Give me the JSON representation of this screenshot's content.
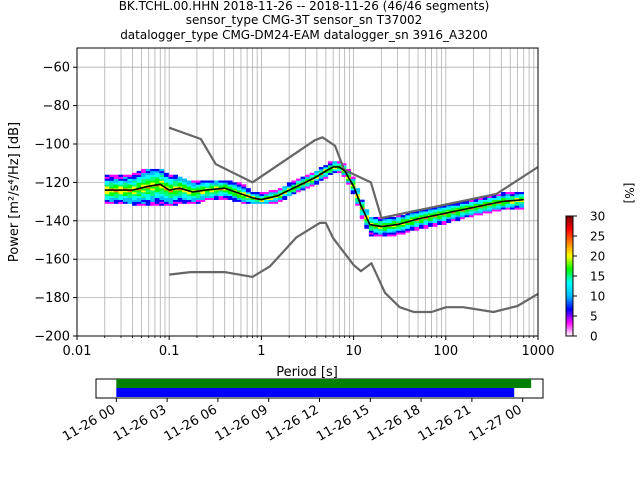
{
  "title_lines": [
    "BK.TCHL.00.HHN   2018-11-26 -- 2018-11-26  (46/46 segments)",
    "sensor_type CMG-3T sensor_sn T37002",
    "datalogger_type CMG-DM24-EAM datalogger_sn 3916_A3200"
  ],
  "colorbar": {
    "label": "[%]",
    "ticks": [
      0,
      5,
      10,
      15,
      20,
      25,
      30
    ],
    "range": [
      0,
      30
    ],
    "colors": [
      "#ffffff",
      "#ff00ff",
      "#0000ff",
      "#00ffff",
      "#00ff00",
      "#ffff00",
      "#ff7f00",
      "#ff0000",
      "#7f0000"
    ]
  },
  "chart_data": {
    "type": "line",
    "xlabel": "Period [s]",
    "ylabel": "Power [m²/s⁴/Hz] [dB]",
    "x_scale": "log",
    "xlim": [
      0.01,
      1000
    ],
    "ylim": [
      -200,
      -50
    ],
    "x_ticks": [
      0.01,
      0.1,
      1,
      10,
      100,
      1000
    ],
    "x_tick_labels": [
      "0.01",
      "0.1",
      "1",
      "10",
      "100",
      "1000"
    ],
    "y_ticks": [
      -200,
      -180,
      -160,
      -140,
      -120,
      -100,
      -80,
      -60
    ],
    "grid": true,
    "series": [
      {
        "role": "noise-model-high",
        "color": "#666666",
        "x": [
          0.1,
          0.22,
          0.32,
          0.8,
          3.8,
          4.6,
          6.3,
          7.9,
          15.4,
          20,
          354.8,
          1000
        ],
        "y": [
          -91.5,
          -97.4,
          -110.5,
          -120,
          -98,
          -96.5,
          -101,
          -113.5,
          -120,
          -138.5,
          -126,
          -112
        ]
      },
      {
        "role": "noise-model-low",
        "color": "#666666",
        "x": [
          0.1,
          0.17,
          0.4,
          0.8,
          1.24,
          2.4,
          4.3,
          5,
          6,
          10,
          12,
          15.6,
          21.9,
          31.6,
          45,
          70,
          101,
          154,
          328,
          600,
          1000
        ],
        "y": [
          -168,
          -166.7,
          -166.7,
          -169.2,
          -163.7,
          -148.6,
          -141.1,
          -141.1,
          -149,
          -163,
          -166.2,
          -162.1,
          -177.5,
          -185,
          -187.5,
          -187.5,
          -185,
          -185,
          -187.5,
          -184.4,
          -178
        ]
      },
      {
        "role": "mean",
        "color": "#000000",
        "x": [
          0.02,
          0.04,
          0.06,
          0.08,
          0.1,
          0.13,
          0.18,
          0.25,
          0.4,
          0.6,
          0.8,
          1,
          1.5,
          2,
          3,
          4,
          5,
          6,
          7,
          8,
          10,
          12,
          15,
          20,
          30,
          50,
          100,
          200,
          400,
          700
        ],
        "y": [
          -124,
          -124,
          -122,
          -121,
          -124,
          -123,
          -125,
          -124,
          -123,
          -126,
          -128,
          -129,
          -127,
          -124,
          -120,
          -117,
          -114,
          -112,
          -112,
          -114,
          -122,
          -132,
          -142,
          -143,
          -142,
          -139,
          -136,
          -133,
          -130,
          -129
        ]
      }
    ],
    "density_band": {
      "x": [
        0.02,
        0.04,
        0.06,
        0.08,
        0.1,
        0.13,
        0.18,
        0.25,
        0.4,
        0.6,
        0.8,
        1,
        1.5,
        2,
        3,
        4,
        5,
        6,
        7,
        8,
        10,
        12,
        15,
        20,
        30,
        50,
        100,
        200,
        400,
        700
      ],
      "low": [
        -130,
        -131,
        -132,
        -131,
        -132,
        -131,
        -131,
        -129,
        -128,
        -130,
        -131,
        -131,
        -130,
        -127,
        -123,
        -120,
        -117,
        -115,
        -114,
        -117,
        -126,
        -137,
        -147,
        -148,
        -147,
        -144,
        -141,
        -137,
        -134,
        -133
      ],
      "high": [
        -117,
        -116,
        -113,
        -113,
        -116,
        -117,
        -120,
        -119,
        -119,
        -121,
        -125,
        -126,
        -124,
        -121,
        -117,
        -114,
        -111,
        -109,
        -109,
        -111,
        -118,
        -128,
        -138,
        -139,
        -138,
        -135,
        -132,
        -129,
        -126,
        -125
      ]
    },
    "timeline": {
      "x_tick_labels": [
        "11-26 00",
        "11-26 03",
        "11-26 06",
        "11-26 09",
        "11-26 12",
        "11-26 15",
        "11-26 18",
        "11-26 21",
        "11-27 00"
      ],
      "x_ticks_hours": [
        0,
        3,
        6,
        9,
        12,
        15,
        18,
        21,
        24
      ],
      "xlim_hours": [
        -1.2,
        25.2
      ],
      "bars": [
        {
          "role": "data-coverage",
          "color": "#008000",
          "start_hours": 0,
          "end_hours": 24.5
        },
        {
          "role": "psd-segments",
          "color": "#0000ff",
          "start_hours": 0,
          "end_hours": 23.5
        }
      ]
    }
  }
}
